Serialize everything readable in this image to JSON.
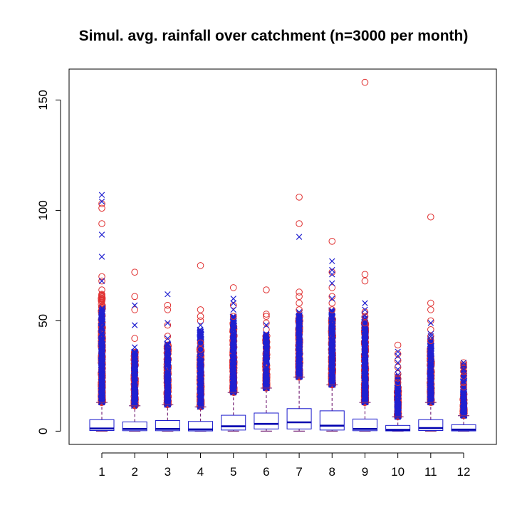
{
  "chart_data": {
    "type": "boxplot",
    "title": "Simul. avg. rainfall over catchment (n=3000 per month)",
    "xlabel": "",
    "ylabel": "",
    "categories": [
      "1",
      "2",
      "3",
      "4",
      "5",
      "6",
      "7",
      "8",
      "9",
      "10",
      "11",
      "12"
    ],
    "ylim": [
      -6,
      164
    ],
    "yticks": [
      0,
      50,
      100,
      150
    ],
    "ytick_labels": [
      "0",
      "50",
      "100",
      "150"
    ],
    "colors": {
      "box": "#1a1acc",
      "median": "#0000b0",
      "whisker": "#7a2a7a",
      "outlier_circle": "#e03030",
      "outlier_cross": "#2020d0",
      "axis": "#000000"
    },
    "boxes": [
      {
        "q1": 0.3,
        "median": 1.2,
        "q3": 5.2,
        "lo": 0,
        "hi": 13,
        "circles": [
          61,
          62,
          64,
          68,
          70,
          94,
          101,
          103
        ],
        "crosses": [
          68,
          79,
          89,
          104,
          107
        ],
        "dense_top_red": 62,
        "dense_top_blue": 56
      },
      {
        "q1": 0.2,
        "median": 1.0,
        "q3": 4.2,
        "lo": 0,
        "hi": 11.5,
        "circles": [
          42,
          55,
          61,
          72
        ],
        "crosses": [
          38,
          48,
          57
        ],
        "dense_top_red": 37,
        "dense_top_blue": 36
      },
      {
        "q1": 0.2,
        "median": 1.0,
        "q3": 4.8,
        "lo": 0,
        "hi": 12,
        "circles": [
          43,
          48,
          55,
          57
        ],
        "crosses": [
          42,
          49,
          62
        ],
        "dense_top_red": 40,
        "dense_top_blue": 40
      },
      {
        "q1": 0.1,
        "median": 0.8,
        "q3": 4.4,
        "lo": 0,
        "hi": 11,
        "circles": [
          37,
          40,
          50,
          52,
          55,
          75
        ],
        "crosses": [
          45,
          48
        ],
        "dense_top_red": 38,
        "dense_top_blue": 46
      },
      {
        "q1": 0.5,
        "median": 2.2,
        "q3": 7.2,
        "lo": 0,
        "hi": 17.5,
        "circles": [
          52,
          57,
          65
        ],
        "crosses": [
          55,
          58,
          60
        ],
        "dense_top_red": 50,
        "dense_top_blue": 52
      },
      {
        "q1": 1.0,
        "median": 3.3,
        "q3": 8.2,
        "lo": 0,
        "hi": 19.5,
        "circles": [
          46,
          49,
          52,
          53,
          64
        ],
        "crosses": [
          44,
          48
        ],
        "dense_top_red": 44,
        "dense_top_blue": 44
      },
      {
        "q1": 1.0,
        "median": 4.0,
        "q3": 10.2,
        "lo": 0,
        "hi": 24.5,
        "circles": [
          55,
          58,
          61,
          63,
          94,
          106
        ],
        "crosses": [
          88
        ],
        "dense_top_red": 52,
        "dense_top_blue": 54
      },
      {
        "q1": 0.5,
        "median": 2.5,
        "q3": 9.2,
        "lo": 0,
        "hi": 21,
        "circles": [
          55,
          58,
          61,
          65,
          72,
          86
        ],
        "crosses": [
          60,
          67,
          71,
          73,
          77
        ],
        "dense_top_red": 52,
        "dense_top_blue": 55
      },
      {
        "q1": 0.2,
        "median": 1.0,
        "q3": 5.5,
        "lo": 0,
        "hi": 13,
        "circles": [
          49,
          52,
          54,
          68,
          71,
          158
        ],
        "crosses": [
          55,
          58
        ],
        "dense_top_red": 50,
        "dense_top_blue": 53
      },
      {
        "q1": 0.1,
        "median": 0.6,
        "q3": 2.6,
        "lo": 0,
        "hi": 6.5,
        "circles": [
          22,
          24,
          26,
          29,
          32,
          35,
          39
        ],
        "crosses": [
          28,
          31,
          34,
          36
        ],
        "dense_top_red": 20,
        "dense_top_blue": 26
      },
      {
        "q1": 0.3,
        "median": 1.4,
        "q3": 5.2,
        "lo": 0,
        "hi": 13,
        "circles": [
          41,
          43,
          46,
          50,
          55,
          58,
          97
        ],
        "crosses": [
          43,
          44,
          49
        ],
        "dense_top_red": 38,
        "dense_top_blue": 42
      },
      {
        "q1": 0.1,
        "median": 0.7,
        "q3": 2.9,
        "lo": 0,
        "hi": 7,
        "circles": [
          20,
          22,
          25,
          27,
          29,
          30,
          31
        ],
        "crosses": [
          24,
          28,
          31
        ],
        "dense_top_red": 18,
        "dense_top_blue": 30
      }
    ]
  }
}
